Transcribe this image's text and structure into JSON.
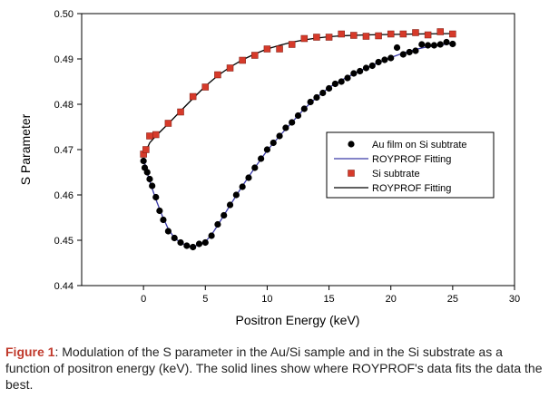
{
  "chart_data": {
    "type": "scatter",
    "xlabel": "Positron Energy (keV)",
    "ylabel": "S Parameter",
    "xlim": [
      -5,
      30
    ],
    "ylim": [
      0.44,
      0.5
    ],
    "xticks": [
      "0",
      "5",
      "10",
      "15",
      "20",
      "25",
      "30"
    ],
    "yticks": [
      "0.44",
      "0.45",
      "0.46",
      "0.47",
      "0.48",
      "0.49",
      "0.50"
    ],
    "legend_position": "middle-right",
    "grid": false,
    "series": [
      {
        "name": "Au film on Si subtrate",
        "marker": "circle",
        "color": "#000000",
        "points": [
          [
            0.0,
            0.4675
          ],
          [
            0.1,
            0.466
          ],
          [
            0.3,
            0.465
          ],
          [
            0.5,
            0.4635
          ],
          [
            0.7,
            0.462
          ],
          [
            1.0,
            0.4595
          ],
          [
            1.3,
            0.4565
          ],
          [
            1.6,
            0.4545
          ],
          [
            2.0,
            0.452
          ],
          [
            2.5,
            0.4505
          ],
          [
            3.0,
            0.4495
          ],
          [
            3.5,
            0.4488
          ],
          [
            4.0,
            0.4485
          ],
          [
            4.5,
            0.4492
          ],
          [
            5.0,
            0.4495
          ],
          [
            5.5,
            0.451
          ],
          [
            6.0,
            0.4535
          ],
          [
            6.5,
            0.4555
          ],
          [
            7.0,
            0.4578
          ],
          [
            7.5,
            0.46
          ],
          [
            8.0,
            0.4618
          ],
          [
            8.5,
            0.4638
          ],
          [
            9.0,
            0.466
          ],
          [
            9.5,
            0.468
          ],
          [
            10.0,
            0.47
          ],
          [
            10.5,
            0.4715
          ],
          [
            11.0,
            0.473
          ],
          [
            11.5,
            0.4748
          ],
          [
            12.0,
            0.476
          ],
          [
            12.5,
            0.4775
          ],
          [
            13.0,
            0.479
          ],
          [
            13.5,
            0.4805
          ],
          [
            14.0,
            0.4815
          ],
          [
            14.5,
            0.4825
          ],
          [
            15.0,
            0.4835
          ],
          [
            15.5,
            0.4845
          ],
          [
            16.0,
            0.485
          ],
          [
            16.5,
            0.4858
          ],
          [
            17.0,
            0.4868
          ],
          [
            17.5,
            0.4873
          ],
          [
            18.0,
            0.488
          ],
          [
            18.5,
            0.4885
          ],
          [
            19.0,
            0.4893
          ],
          [
            19.5,
            0.4898
          ],
          [
            20.0,
            0.4902
          ],
          [
            20.5,
            0.4925
          ],
          [
            21.0,
            0.491
          ],
          [
            21.5,
            0.4915
          ],
          [
            22.0,
            0.4918
          ],
          [
            22.5,
            0.4932
          ],
          [
            23.0,
            0.493
          ],
          [
            23.5,
            0.493
          ],
          [
            24.0,
            0.4932
          ],
          [
            24.5,
            0.4937
          ],
          [
            25.0,
            0.4933
          ]
        ]
      },
      {
        "name": "ROYPROF Fitting",
        "marker": "line",
        "color": "#3a3aa8",
        "points": [
          [
            0.0,
            0.468
          ],
          [
            0.5,
            0.463
          ],
          [
            1.0,
            0.459
          ],
          [
            1.5,
            0.4555
          ],
          [
            2.0,
            0.4525
          ],
          [
            2.5,
            0.4505
          ],
          [
            3.0,
            0.4495
          ],
          [
            3.5,
            0.4488
          ],
          [
            4.0,
            0.4486
          ],
          [
            4.5,
            0.449
          ],
          [
            5.0,
            0.4497
          ],
          [
            5.5,
            0.4512
          ],
          [
            6.0,
            0.4533
          ],
          [
            7.0,
            0.4577
          ],
          [
            8.0,
            0.462
          ],
          [
            9.0,
            0.466
          ],
          [
            10.0,
            0.4698
          ],
          [
            11.0,
            0.473
          ],
          [
            12.0,
            0.476
          ],
          [
            13.0,
            0.479
          ],
          [
            14.0,
            0.4815
          ],
          [
            15.0,
            0.4837
          ],
          [
            16.0,
            0.4853
          ],
          [
            17.0,
            0.4867
          ],
          [
            18.0,
            0.488
          ],
          [
            19.0,
            0.4892
          ],
          [
            20.0,
            0.4903
          ],
          [
            21.0,
            0.4913
          ],
          [
            22.0,
            0.4921
          ],
          [
            23.0,
            0.4927
          ],
          [
            24.0,
            0.4931
          ],
          [
            25.0,
            0.4934
          ]
        ]
      },
      {
        "name": "Si subtrate",
        "marker": "square",
        "color": "#d63a2a",
        "points": [
          [
            0.0,
            0.469
          ],
          [
            0.2,
            0.47
          ],
          [
            0.5,
            0.473
          ],
          [
            1.0,
            0.4733
          ],
          [
            2.0,
            0.4758
          ],
          [
            3.0,
            0.4783
          ],
          [
            4.0,
            0.4817
          ],
          [
            5.0,
            0.4838
          ],
          [
            6.0,
            0.4865
          ],
          [
            7.0,
            0.488
          ],
          [
            8.0,
            0.4897
          ],
          [
            9.0,
            0.4908
          ],
          [
            10.0,
            0.4922
          ],
          [
            11.0,
            0.4922
          ],
          [
            12.0,
            0.4932
          ],
          [
            13.0,
            0.4945
          ],
          [
            14.0,
            0.4948
          ],
          [
            15.0,
            0.4948
          ],
          [
            16.0,
            0.4955
          ],
          [
            17.0,
            0.4952
          ],
          [
            18.0,
            0.495
          ],
          [
            19.0,
            0.4951
          ],
          [
            20.0,
            0.4955
          ],
          [
            21.0,
            0.4955
          ],
          [
            22.0,
            0.4958
          ],
          [
            23.0,
            0.4953
          ],
          [
            24.0,
            0.496
          ],
          [
            25.0,
            0.4955
          ]
        ]
      },
      {
        "name": "ROYPROF Fitting",
        "marker": "line",
        "color": "#000000",
        "points": [
          [
            0.0,
            0.4685
          ],
          [
            0.5,
            0.4715
          ],
          [
            1.0,
            0.473
          ],
          [
            2.0,
            0.4757
          ],
          [
            3.0,
            0.4785
          ],
          [
            4.0,
            0.4813
          ],
          [
            5.0,
            0.484
          ],
          [
            6.0,
            0.4863
          ],
          [
            7.0,
            0.4882
          ],
          [
            8.0,
            0.4898
          ],
          [
            9.0,
            0.4911
          ],
          [
            10.0,
            0.4922
          ],
          [
            11.0,
            0.493
          ],
          [
            12.0,
            0.4937
          ],
          [
            13.0,
            0.4942
          ],
          [
            14.0,
            0.4946
          ],
          [
            15.0,
            0.4949
          ],
          [
            16.0,
            0.4951
          ],
          [
            17.0,
            0.4952
          ],
          [
            18.0,
            0.4953
          ],
          [
            20.0,
            0.4954
          ],
          [
            22.0,
            0.4955
          ],
          [
            25.0,
            0.4956
          ]
        ]
      }
    ]
  },
  "caption": {
    "label": "Figure 1",
    "text": ": Modulation of the S parameter in the Au/Si sample and in the Si substrate as a function of positron energy (keV). The solid lines show where ROYPROF's data fits the data the best."
  }
}
